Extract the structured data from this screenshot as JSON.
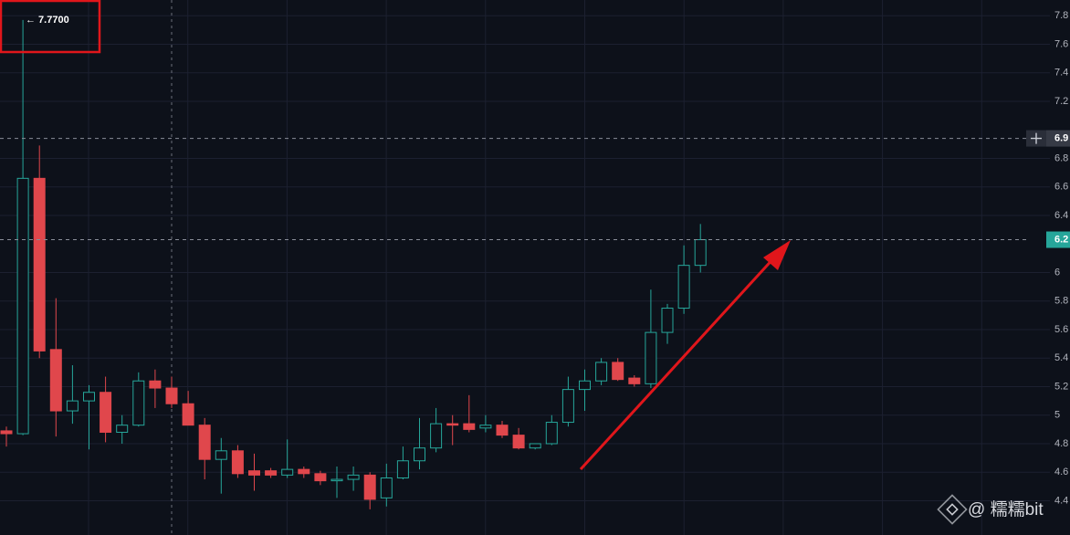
{
  "chart_data": {
    "type": "candlestick",
    "open": [
      4.89,
      4.87,
      6.66,
      5.46,
      5.03,
      5.1,
      5.16,
      4.88,
      4.93,
      5.24,
      5.19,
      5.08,
      4.93,
      4.69,
      4.75,
      4.61,
      4.61,
      4.58,
      4.62,
      4.59,
      4.54,
      4.55,
      4.58,
      4.42,
      4.56,
      4.68,
      4.77,
      4.94,
      4.94,
      4.91,
      4.93,
      4.86,
      4.77,
      4.8,
      4.95,
      5.18,
      5.24,
      5.37,
      5.26,
      5.22,
      5.58,
      5.75,
      6.05
    ],
    "high": [
      4.92,
      7.77,
      6.89,
      5.82,
      5.35,
      5.21,
      5.27,
      5.0,
      5.3,
      5.32,
      5.27,
      5.17,
      4.98,
      4.84,
      4.79,
      4.73,
      4.63,
      4.83,
      4.64,
      4.61,
      4.64,
      4.64,
      4.6,
      4.66,
      4.78,
      4.98,
      5.05,
      5.0,
      5.14,
      5.0,
      4.96,
      4.91,
      4.8,
      5.0,
      5.27,
      5.32,
      5.4,
      5.4,
      5.28,
      5.88,
      5.78,
      6.19,
      6.34
    ],
    "low": [
      4.78,
      4.86,
      5.4,
      4.85,
      4.94,
      4.76,
      4.81,
      4.8,
      4.92,
      5.05,
      5.05,
      4.93,
      4.55,
      4.45,
      4.56,
      4.47,
      4.56,
      4.56,
      4.56,
      4.51,
      4.42,
      4.47,
      4.34,
      4.36,
      4.55,
      4.62,
      4.74,
      4.79,
      4.88,
      4.88,
      4.84,
      4.76,
      4.76,
      4.79,
      4.92,
      5.03,
      5.21,
      5.24,
      5.2,
      5.19,
      5.5,
      5.71,
      6.0
    ],
    "close": [
      4.87,
      6.66,
      5.45,
      5.03,
      5.1,
      5.16,
      4.88,
      4.93,
      5.24,
      5.19,
      5.08,
      4.93,
      4.69,
      4.75,
      4.59,
      4.58,
      4.58,
      4.62,
      4.59,
      4.54,
      4.55,
      4.58,
      4.41,
      4.56,
      4.68,
      4.77,
      4.94,
      4.93,
      4.9,
      4.93,
      4.86,
      4.77,
      4.8,
      4.95,
      5.18,
      5.24,
      5.37,
      5.25,
      5.22,
      5.58,
      5.75,
      6.05,
      6.23
    ],
    "up_color": "#26a69a",
    "down_color": "#e0474c",
    "ylim": [
      4.16,
      7.91
    ],
    "yticks": [
      7.8,
      7.6,
      7.4,
      7.2,
      6.8,
      6.6,
      6.4,
      6.0,
      5.8,
      5.6,
      5.4,
      5.2,
      5.0,
      4.8,
      4.6,
      4.4
    ],
    "grid": true,
    "price_lines": [
      {
        "value": 6.94,
        "label": "6.9",
        "color": "#363a45"
      },
      {
        "value": 6.23,
        "label": "6.2",
        "color": "#26a69a"
      }
    ],
    "high_annotation": "← 7.7700",
    "watermark": "@ 糯糯bit"
  }
}
